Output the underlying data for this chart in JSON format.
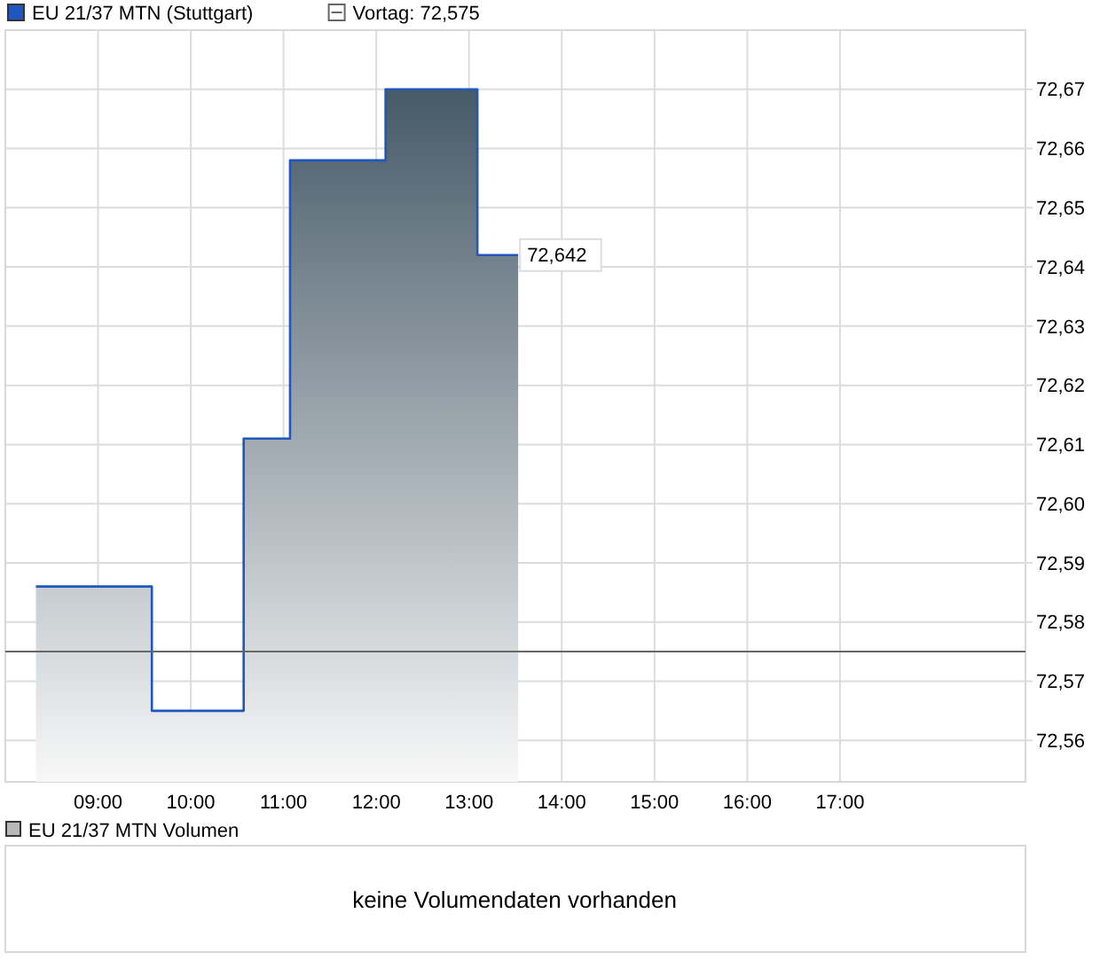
{
  "chart_data": [
    {
      "type": "area",
      "title": null,
      "x": [
        8.33,
        9.58,
        9.58,
        10.57,
        10.57,
        11.07,
        11.07,
        12.1,
        12.1,
        13.09,
        13.09,
        13.53
      ],
      "series": [
        {
          "name": "EU 21/37 MTN (Stuttgart)",
          "color": "#1f56c0",
          "values": [
            72.586,
            72.586,
            72.565,
            72.565,
            72.611,
            72.611,
            72.658,
            72.658,
            72.67,
            72.67,
            72.642,
            72.642
          ]
        }
      ],
      "xlim": [
        8,
        19
      ],
      "xticks": [
        {
          "value": 9,
          "label": "09:00"
        },
        {
          "value": 10,
          "label": "10:00"
        },
        {
          "value": 11,
          "label": "11:00"
        },
        {
          "value": 12,
          "label": "12:00"
        },
        {
          "value": 13,
          "label": "13:00"
        },
        {
          "value": 14,
          "label": "14:00"
        },
        {
          "value": 15,
          "label": "15:00"
        },
        {
          "value": 16,
          "label": "16:00"
        },
        {
          "value": 17,
          "label": "17:00"
        }
      ],
      "ylim": [
        72.553,
        72.68
      ],
      "yticks": [
        {
          "value": 72.56,
          "label": "72,56"
        },
        {
          "value": 72.57,
          "label": "72,57"
        },
        {
          "value": 72.58,
          "label": "72,58"
        },
        {
          "value": 72.59,
          "label": "72,59"
        },
        {
          "value": 72.6,
          "label": "72,60"
        },
        {
          "value": 72.61,
          "label": "72,61"
        },
        {
          "value": 72.62,
          "label": "72,62"
        },
        {
          "value": 72.63,
          "label": "72,63"
        },
        {
          "value": 72.64,
          "label": "72,64"
        },
        {
          "value": 72.65,
          "label": "72,65"
        },
        {
          "value": 72.66,
          "label": "72,66"
        },
        {
          "value": 72.67,
          "label": "72,67"
        }
      ],
      "ref_lines": [
        {
          "axis": "y",
          "value": 72.575,
          "label": "Vortag: 72,575",
          "color": "#666666"
        }
      ],
      "annotations": [
        {
          "text": "72,642",
          "x": 13.53,
          "y": 72.642
        }
      ],
      "grid": true,
      "legend": "top left"
    },
    {
      "type": "other",
      "title": "EU 21/37 MTN Volumen",
      "annotations": [
        "keine Volumendaten vorhanden"
      ]
    }
  ]
}
